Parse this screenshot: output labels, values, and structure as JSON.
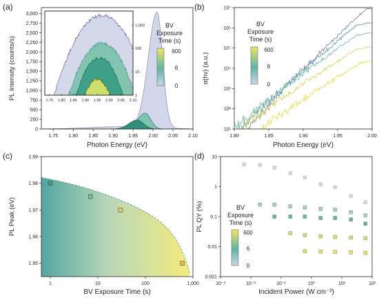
{
  "chart_data": [
    {
      "panel": "(a)",
      "type": "area",
      "xlabel": "Photon Energy (eV)",
      "ylabel": "PL Intensity (counts/s)",
      "xlim": [
        1.72,
        2.1
      ],
      "ylim": [
        0,
        3150
      ],
      "xticks": [
        "1.75",
        "1.80",
        "1.85",
        "1.90",
        "1.95",
        "2.00",
        "2.05",
        "2.10"
      ],
      "yticks": [
        "0",
        "250",
        "500",
        "750",
        "1,000",
        "1,250",
        "1,500",
        "1,750",
        "2,000",
        "2,250",
        "2,500",
        "2,750",
        "3,000"
      ],
      "peaks": [
        {
          "exposure_s": 0,
          "peak_ev": 2.01,
          "peak_counts": 3000
        },
        {
          "exposure_s": 6,
          "peak_ev": 1.98,
          "peak_counts": 410
        },
        {
          "exposure_s": 600,
          "peak_ev": 1.96,
          "peak_counts": 235
        }
      ],
      "legend": {
        "title": [
          "BV",
          "Exposure",
          "Time (s)"
        ],
        "ticks": [
          "600",
          "6",
          "0"
        ]
      },
      "inset": {
        "xticks": [
          "1.75",
          "1.80",
          "1.85",
          "1.90",
          "1.95",
          "2.00",
          "2.05",
          "2.10"
        ],
        "yticks": [
          "1",
          "10",
          "100",
          "1,000"
        ],
        "yscale": "log",
        "peaks": [
          {
            "exposure_s": 0,
            "peak_ev": 1.97,
            "peak_counts": 2600
          },
          {
            "exposure_s": 6,
            "peak_ev": 1.97,
            "peak_counts": 170
          },
          {
            "exposure_s": 60,
            "peak_ev": 1.96,
            "peak_counts": 40
          },
          {
            "exposure_s": 600,
            "peak_ev": 1.95,
            "peak_counts": 5
          }
        ]
      }
    },
    {
      "panel": "(b)",
      "type": "line",
      "xlabel": "Photon Energy (eV)",
      "ylabel": "α(hν) (a.u.)",
      "xlim": [
        1.8,
        2.0
      ],
      "yscale": "log",
      "ylim_exp": [
        1,
        7
      ],
      "xticks": [
        "1.80",
        "1.85",
        "1.90",
        "1.95",
        "2.00"
      ],
      "yticks": [
        "10¹",
        "10²",
        "10³",
        "10⁴",
        "10⁵",
        "10⁶",
        "10⁷"
      ],
      "series": [
        {
          "exposure_s": 0,
          "start_exp": 1.0,
          "end_exp": 6.9,
          "start_ev": 1.82,
          "plateau_ev": 1.99
        },
        {
          "exposure_s": 2,
          "start_exp": 1.0,
          "end_exp": 6.2,
          "start_ev": 1.81,
          "plateau_ev": 1.98
        },
        {
          "exposure_s": 6,
          "start_exp": 1.0,
          "end_exp": 5.7,
          "start_ev": 1.8,
          "plateau_ev": 1.98
        },
        {
          "exposure_s": 60,
          "start_exp": 1.0,
          "end_exp": 5.0,
          "start_ev": 1.81,
          "plateau_ev": 1.98
        },
        {
          "exposure_s": 600,
          "start_exp": 1.0,
          "end_exp": 4.3,
          "start_ev": 1.84,
          "plateau_ev": 1.985
        }
      ],
      "legend": {
        "title": [
          "BV",
          "Exposure",
          "Time (s)"
        ],
        "ticks": [
          "600",
          "6",
          "0"
        ]
      }
    },
    {
      "panel": "(c)",
      "type": "scatter",
      "xlabel": "BV Exposure Time (s)",
      "ylabel": "PL Peak (eV)",
      "xscale": "log",
      "xlim": [
        0.65,
        1000
      ],
      "ylim": [
        1.945,
        1.99
      ],
      "xticks": [
        "1",
        "10",
        "100",
        "1,000"
      ],
      "yticks": [
        "1.95",
        "1.96",
        "1.97",
        "1.98",
        "1.99"
      ],
      "x": [
        1,
        7,
        30,
        600
      ],
      "y": [
        1.98,
        1.975,
        1.97,
        1.95
      ]
    },
    {
      "panel": "(d)",
      "type": "scatter",
      "xlabel": "Incident Power (W cm⁻²)",
      "ylabel": "PL QY (%)",
      "xscale": "log",
      "yscale": "log",
      "xlim_exp": [
        -3,
        2
      ],
      "ylim_exp": [
        -3,
        1
      ],
      "xticks": [
        "10⁻³",
        "10⁻²",
        "10⁻¹",
        "10⁰",
        "10¹",
        "10²"
      ],
      "yticks": [
        "0.001",
        "0.01",
        "0.1",
        "1",
        "10"
      ],
      "series": [
        {
          "exposure_s": 0,
          "x": [
            0.006,
            0.02,
            0.06,
            0.2,
            0.6,
            2,
            6,
            20,
            60
          ],
          "y": [
            5.5,
            5.2,
            4.3,
            2.8,
            2.0,
            1.2,
            0.95,
            0.48,
            0.3
          ]
        },
        {
          "exposure_s": 6,
          "x": [
            0.02,
            0.06,
            0.2,
            0.6,
            2,
            6,
            20,
            60
          ],
          "y": [
            0.25,
            0.25,
            0.22,
            0.2,
            0.18,
            0.17,
            0.14,
            0.11
          ]
        },
        {
          "exposure_s": 30,
          "x": [
            0.06,
            0.2,
            0.6,
            2,
            6,
            20,
            60
          ],
          "y": [
            0.1,
            0.1,
            0.1,
            0.09,
            0.09,
            0.08,
            0.058
          ]
        },
        {
          "exposure_s": 300,
          "x": [
            0.2,
            0.6,
            2,
            6,
            20,
            60
          ],
          "y": [
            0.028,
            0.024,
            0.022,
            0.021,
            0.02,
            0.019
          ]
        },
        {
          "exposure_s": 600,
          "x": [
            0.6,
            2,
            6,
            20,
            60
          ],
          "y": [
            0.007,
            0.0068,
            0.0066,
            0.0064,
            0.0062
          ]
        }
      ],
      "legend": {
        "title": [
          "BV",
          "Exposure",
          "Time (s)"
        ],
        "ticks": [
          "600",
          "6",
          "0"
        ]
      }
    }
  ],
  "colors": {
    "lavender": "#d2d6ea",
    "lavender_line": "#8c89b0",
    "teal": "#3aa394",
    "teal_light": "#7cc4ae",
    "green_dark": "#2f8e7c",
    "lime": "#c9df5a",
    "yellow": "#efe661",
    "pale_yellow": "#f3ef8c"
  }
}
